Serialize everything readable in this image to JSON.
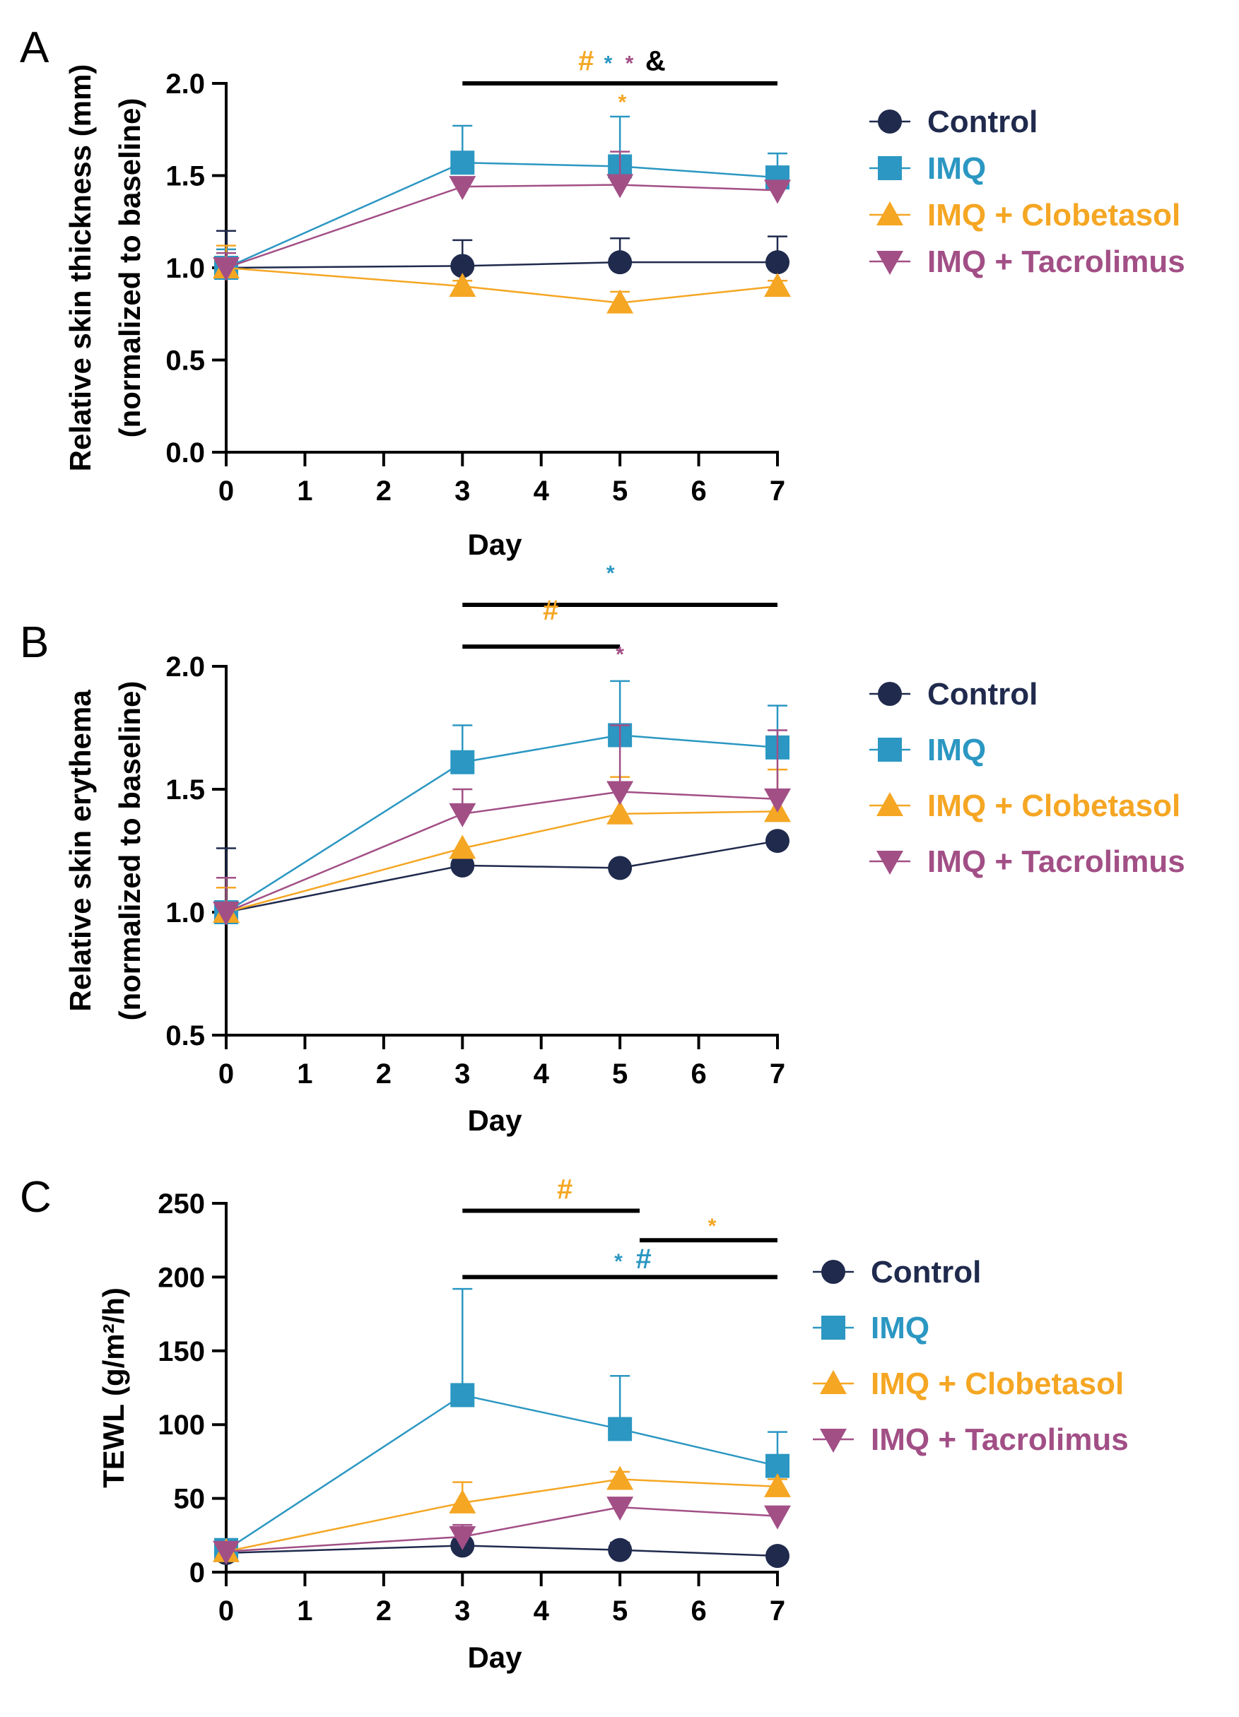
{
  "colors": {
    "Control": "#1f2a4d",
    "IMQ": "#2b97c2",
    "IMQ + Clobetasol": "#f5a623",
    "IMQ + Tacrolimus": "#a24f86",
    "black": "#000000"
  },
  "chart_data": [
    {
      "panel": "A",
      "type": "line",
      "xlabel": "Day",
      "ylabel": "Relative skin thickness (mm)",
      "ylabel2": "(normalized to baseline)",
      "x": [
        0,
        3,
        5,
        7
      ],
      "xlim": [
        0,
        7
      ],
      "xticks": [
        "0",
        "1",
        "2",
        "3",
        "4",
        "5",
        "6",
        "7"
      ],
      "ylim": [
        0,
        2.0
      ],
      "yticks": [
        "0.0",
        "0.5",
        "1.0",
        "1.5",
        "2.0"
      ],
      "ytick_values": [
        0,
        0.5,
        1.0,
        1.5,
        2.0
      ],
      "series": [
        {
          "name": "Control",
          "marker": "circle",
          "values": [
            1.0,
            1.01,
            1.03,
            1.03
          ],
          "err": [
            0.2,
            0.14,
            0.13,
            0.14
          ]
        },
        {
          "name": "IMQ",
          "marker": "square",
          "values": [
            1.0,
            1.57,
            1.55,
            1.49
          ],
          "err": [
            0.1,
            0.2,
            0.27,
            0.13
          ]
        },
        {
          "name": "IMQ + Clobetasol",
          "marker": "triangle-up",
          "values": [
            1.0,
            0.9,
            0.81,
            0.9
          ],
          "err": [
            0.12,
            0.03,
            0.06,
            0.03
          ]
        },
        {
          "name": "IMQ + Tacrolimus",
          "marker": "triangle-down",
          "values": [
            1.0,
            1.44,
            1.45,
            1.42
          ],
          "err": [
            0.08,
            0.04,
            0.18,
            0.03
          ]
        }
      ],
      "legend": [
        "Control",
        "IMQ",
        "IMQ + Clobetasol",
        "IMQ + Tacrolimus"
      ],
      "significance": {
        "bars": [
          {
            "x1": 3,
            "x2": 7,
            "y": 2.0
          }
        ],
        "marks": [
          {
            "text": "#",
            "color": "IMQ + Clobetasol",
            "x": 4.57,
            "y": 2.07
          },
          {
            "text": "*",
            "color": "IMQ",
            "x": 4.85,
            "y": 2.07
          },
          {
            "text": "*",
            "color": "IMQ + Tacrolimus",
            "x": 5.12,
            "y": 2.07
          },
          {
            "text": "&",
            "color": "black",
            "x": 5.45,
            "y": 2.07
          },
          {
            "text": "*",
            "color": "IMQ + Clobetasol",
            "x": 5.03,
            "y": 1.86
          }
        ]
      }
    },
    {
      "panel": "B",
      "type": "line",
      "xlabel": "Day",
      "ylabel": "Relative skin erythema",
      "ylabel2": "(normalized to baseline)",
      "x": [
        0,
        3,
        5,
        7
      ],
      "xlim": [
        0,
        7
      ],
      "xticks": [
        "0",
        "1",
        "2",
        "3",
        "4",
        "5",
        "6",
        "7"
      ],
      "ylim": [
        0.5,
        2.0
      ],
      "yticks": [
        "0.5",
        "1.0",
        "1.5",
        "2.0"
      ],
      "ytick_values": [
        0.5,
        1.0,
        1.5,
        2.0
      ],
      "series": [
        {
          "name": "Control",
          "marker": "circle",
          "values": [
            1.0,
            1.19,
            1.18,
            1.29
          ],
          "err": [
            0.26,
            0.0,
            0.0,
            0.0
          ]
        },
        {
          "name": "IMQ",
          "marker": "square",
          "values": [
            1.0,
            1.61,
            1.72,
            1.67
          ],
          "err": [
            0.1,
            0.15,
            0.22,
            0.17
          ]
        },
        {
          "name": "IMQ + Clobetasol",
          "marker": "triangle-up",
          "values": [
            1.0,
            1.26,
            1.4,
            1.41
          ],
          "err": [
            0.1,
            0.0,
            0.15,
            0.17
          ]
        },
        {
          "name": "IMQ + Tacrolimus",
          "marker": "triangle-down",
          "values": [
            1.0,
            1.4,
            1.49,
            1.46
          ],
          "err": [
            0.14,
            0.1,
            0.27,
            0.28
          ]
        }
      ],
      "legend": [
        "Control",
        "IMQ",
        "IMQ + Clobetasol",
        "IMQ + Tacrolimus"
      ],
      "significance": {
        "bars": [
          {
            "x1": 3,
            "x2": 7,
            "y": 2.25
          },
          {
            "x1": 3,
            "x2": 5,
            "y": 2.08
          }
        ],
        "marks": [
          {
            "text": "*",
            "color": "IMQ",
            "x": 4.88,
            "y": 2.35
          },
          {
            "text": "#",
            "color": "IMQ + Clobetasol",
            "x": 4.12,
            "y": 2.19
          },
          {
            "text": "*",
            "color": "IMQ + Tacrolimus",
            "x": 5.0,
            "y": 2.02
          }
        ]
      }
    },
    {
      "panel": "C",
      "type": "line",
      "xlabel": "Day",
      "ylabel": "TEWL (g/m²/h)",
      "x": [
        0,
        3,
        5,
        7
      ],
      "xlim": [
        0,
        7
      ],
      "xticks": [
        "0",
        "1",
        "2",
        "3",
        "4",
        "5",
        "6",
        "7"
      ],
      "ylim": [
        0,
        250
      ],
      "yticks": [
        "0",
        "50",
        "100",
        "150",
        "200",
        "250"
      ],
      "ytick_values": [
        0,
        50,
        100,
        150,
        200,
        250
      ],
      "series": [
        {
          "name": "Control",
          "marker": "circle",
          "values": [
            13,
            18,
            15,
            11
          ],
          "err": [
            3,
            3,
            5,
            2
          ]
        },
        {
          "name": "IMQ",
          "marker": "square",
          "values": [
            15,
            120,
            97,
            72
          ],
          "err": [
            3,
            72,
            36,
            23
          ]
        },
        {
          "name": "IMQ + Clobetasol",
          "marker": "triangle-up",
          "values": [
            14,
            47,
            63,
            58
          ],
          "err": [
            3,
            14,
            5,
            5
          ]
        },
        {
          "name": "IMQ + Tacrolimus",
          "marker": "triangle-down",
          "values": [
            14,
            24,
            44,
            38
          ],
          "err": [
            3,
            8,
            5,
            4
          ]
        }
      ],
      "legend": [
        "Control",
        "IMQ",
        "IMQ + Clobetasol",
        "IMQ + Tacrolimus"
      ],
      "significance": {
        "bars": [
          {
            "x1": 3,
            "x2": 5.25,
            "y": 245
          },
          {
            "x1": 5.25,
            "x2": 7,
            "y": 225
          },
          {
            "x1": 3,
            "x2": 7,
            "y": 200
          }
        ],
        "marks": [
          {
            "text": "#",
            "color": "IMQ + Clobetasol",
            "x": 4.3,
            "y": 253
          },
          {
            "text": "*",
            "color": "IMQ + Clobetasol",
            "x": 6.17,
            "y": 230
          },
          {
            "text": "*",
            "color": "IMQ",
            "x": 4.98,
            "y": 206
          },
          {
            "text": "#",
            "color": "IMQ",
            "x": 5.3,
            "y": 206
          }
        ]
      }
    }
  ]
}
